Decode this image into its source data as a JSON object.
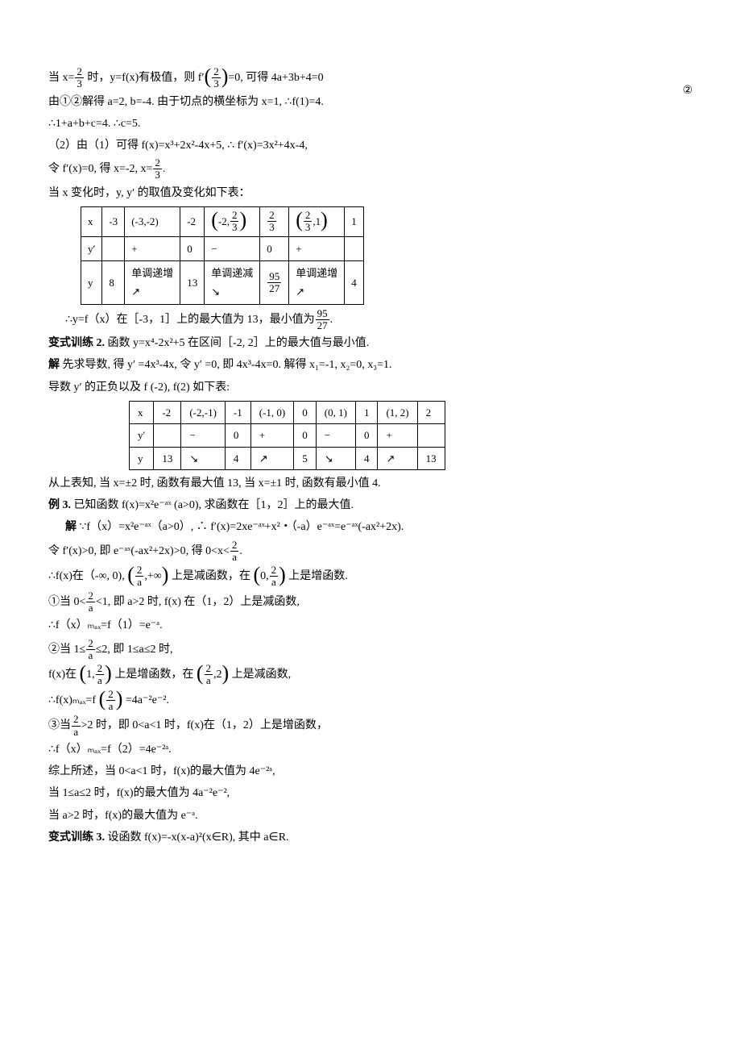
{
  "page_number": "②",
  "p1_a": "当 x=",
  "p1_frac1_n": "2",
  "p1_frac1_d": "3",
  "p1_b": " 时，y=f(x)有极值，则 f′",
  "p1_frac2_n": "2",
  "p1_frac2_d": "3",
  "p1_c": "=0, 可得 4a+3b+4=0",
  "p2": "由①②解得 a=2, b=-4. 由于切点的横坐标为 x=1, ∴f(1)=4.",
  "p3": "∴1+a+b+c=4.  ∴c=5.",
  "p4": "（2）由（1）可得 f(x)=x³+2x²-4x+5, ∴ f′(x)=3x²+4x-4,",
  "p5_a": "令 f′(x)=0, 得 x=-2, x=",
  "p5_frac_n": "2",
  "p5_frac_d": "3",
  "p5_b": ".",
  "p6": "当 x 变化时，y, y′ 的取值及变化如下表：",
  "t1": {
    "r1": [
      "x",
      "-3",
      "(-3,-2)",
      "-2",
      {
        "pre": "",
        "n": "2",
        "d": "3",
        "open": "(-2,",
        "close": ")"
      },
      {
        "n": "2",
        "d": "3"
      },
      {
        "open": "(",
        "n": "2",
        "d": "3",
        "close": ",1)"
      },
      "1"
    ],
    "r2": [
      "y′",
      "",
      "+",
      "0",
      "−",
      "0",
      "+",
      ""
    ],
    "r3": [
      "y",
      "8",
      "单调递增\n↗",
      "13",
      "单调递减\n↘",
      {
        "n": "95",
        "d": "27"
      },
      "单调递增\n↗",
      "4"
    ]
  },
  "p7_a": "∴y=f（x）在［-3，1］上的最大值为 13，最小值为",
  "p7_frac_n": "95",
  "p7_frac_d": "27",
  "p7_b": ".",
  "p8_label": "变式训练 2.",
  "p8": " 函数 y=x⁴-2x²+5 在区间［-2, 2］上的最大值与最小值.",
  "p9_label": "解",
  "p9": "   先求导数, 得 y′ =4x³-4x, 令 y′ =0, 即 4x³-4x=0. 解得 x₁=-1, x₂=0, x₃=1.",
  "p10": "导数 y′ 的正负以及 f (-2), f(2) 如下表:",
  "t2": {
    "r1": [
      "x",
      "-2",
      "(-2,-1)",
      "-1",
      "(-1, 0)",
      "0",
      "(0, 1)",
      "1",
      "(1, 2)",
      "2"
    ],
    "r2": [
      "y′",
      "",
      "−",
      "0",
      "+",
      "0",
      "−",
      "0",
      "+",
      ""
    ],
    "r3": [
      "y",
      "13",
      "↘",
      "4",
      "↗",
      "5",
      "↘",
      "4",
      "↗",
      "13"
    ]
  },
  "p11": "从上表知, 当 x=±2 时, 函数有最大值 13, 当 x=±1 时, 函数有最小值 4.",
  "p12_label": "例 3.",
  "p12": " 已知函数 f(x)=x²e⁻ᵃˣ (a>0), 求函数在［1，2］上的最大值.",
  "p13_label": "解",
  "p13": "   ∵f（x）=x²e⁻ᵃˣ（a>0）, ∴ f′(x)=2xe⁻ᵃˣ+x²・（-a）e⁻ᵃˣ=e⁻ᵃˣ(-ax²+2x).",
  "p14_a": "令 f′(x)>0, 即 e⁻ᵃˣ(-ax²+2x)>0, 得 0<x<",
  "p14_frac_n": "2",
  "p14_frac_d": "a",
  "p14_b": ".",
  "p15_a": "∴f(x)在（-∞, 0),",
  "p15_frac1_n": "2",
  "p15_frac1_d": "a",
  "p15_b": "上是减函数，在",
  "p15_frac2_n": "2",
  "p15_frac2_d": "a",
  "p15_c": "上是增函数.",
  "p16_a": "①当 0<",
  "p16_frac_n": "2",
  "p16_frac_d": "a",
  "p16_b": "<1, 即 a>2 时, f(x) 在（1，2）上是减函数,",
  "p17": "∴f（x）ₘₐₓ=f（1）=e⁻ᵃ.",
  "p18_a": "②当 1≤",
  "p18_frac_n": "2",
  "p18_frac_d": "a",
  "p18_b": "≤2, 即 1≤a≤2 时,",
  "p19_a": "f(x)在",
  "p19_frac1_n": "2",
  "p19_frac1_d": "a",
  "p19_b": "上是增函数，在",
  "p19_frac2_n": "2",
  "p19_frac2_d": "a",
  "p19_c": "上是减函数,",
  "p20_a": "∴f(x)ₘₐₓ=f",
  "p20_frac_n": "2",
  "p20_frac_d": "a",
  "p20_b": "=4a⁻²e⁻².",
  "p21_a": "③当",
  "p21_frac_n": "2",
  "p21_frac_d": "a",
  "p21_b": ">2 时，即 0<a<1 时，f(x)在（1，2）上是增函数，",
  "p22": "∴f（x）ₘₐₓ=f（2）=4e⁻²ᵃ.",
  "p23": "综上所述，当 0<a<1 时，f(x)的最大值为 4e⁻²ᵃ,",
  "p24": "当 1≤a≤2 时，f(x)的最大值为 4a⁻²e⁻²,",
  "p25": "当 a>2 时，f(x)的最大值为 e⁻ᵃ.",
  "p26_label": "变式训练 3.",
  "p26": " 设函数 f(x)=-x(x-a)²(x∈R), 其中 a∈R."
}
